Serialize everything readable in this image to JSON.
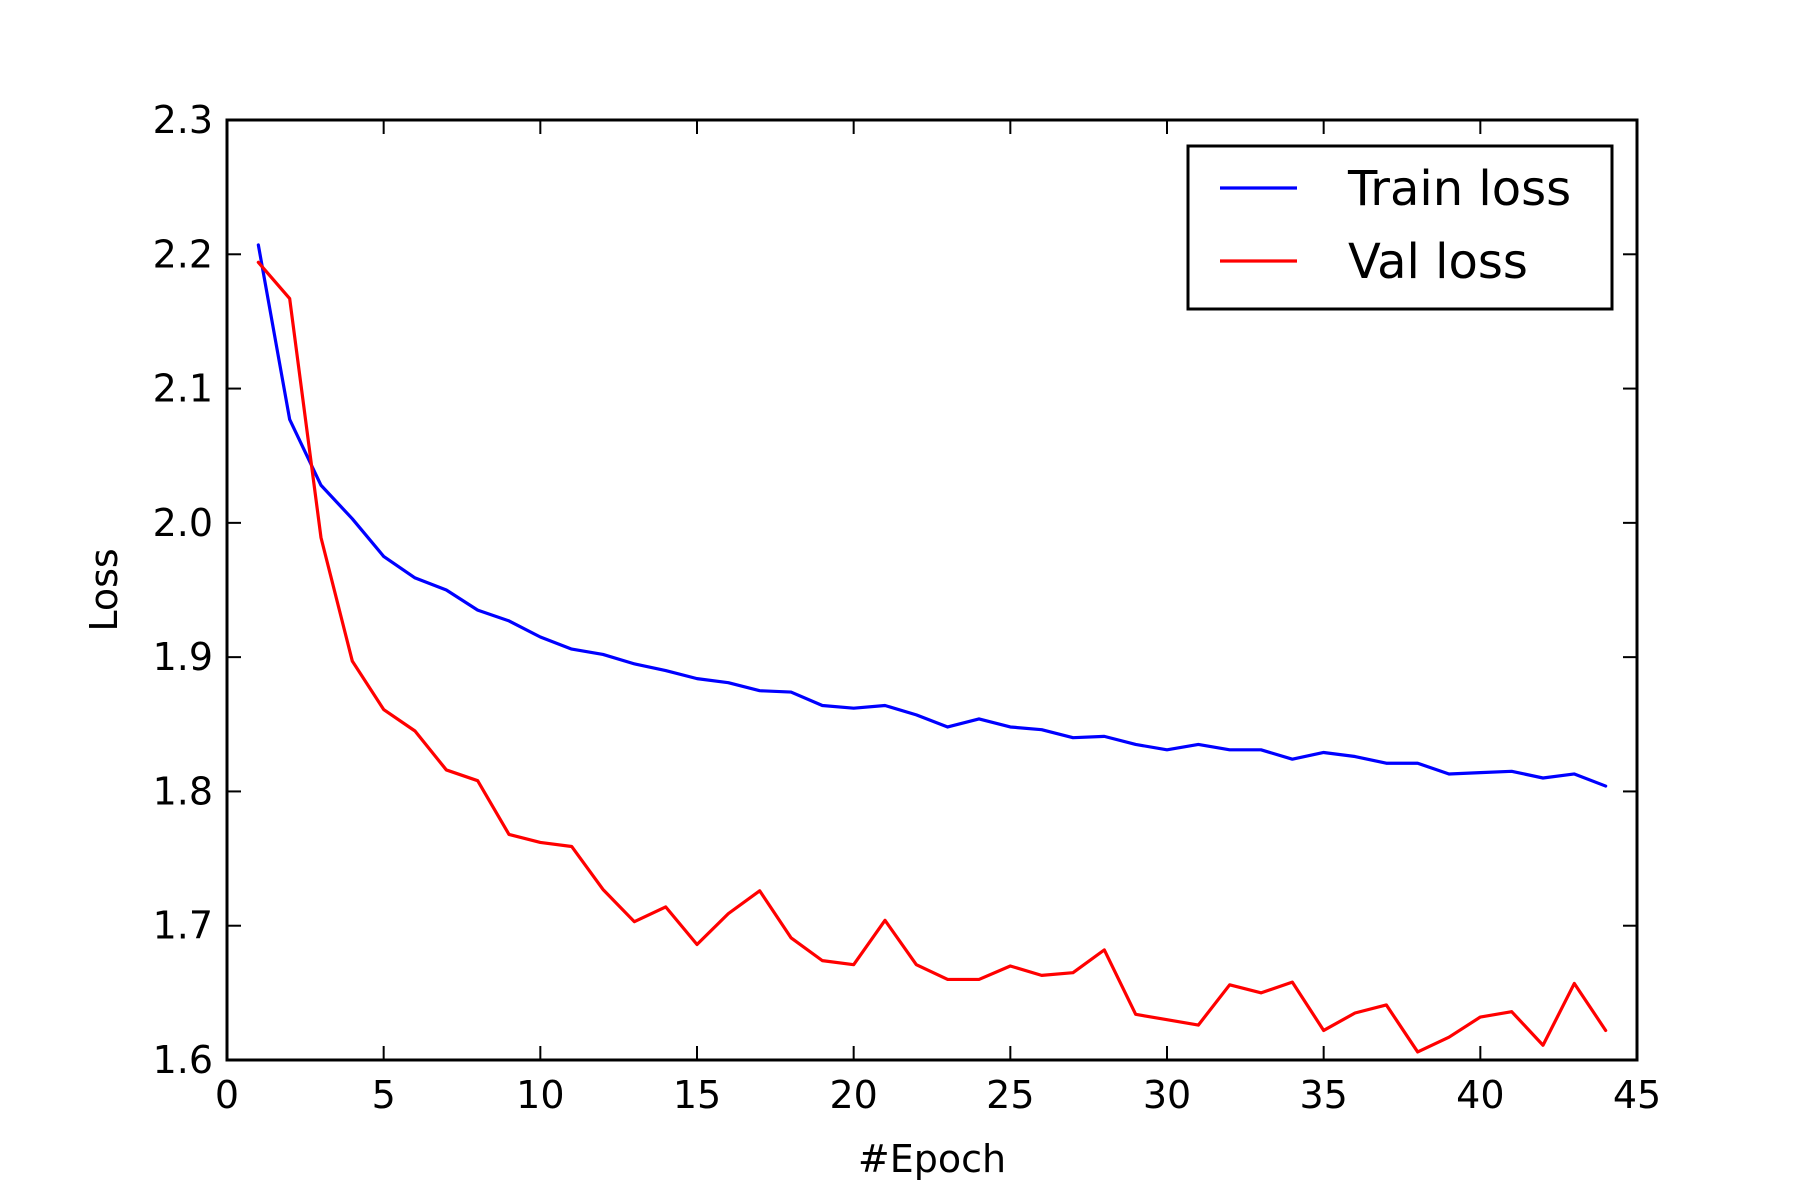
{
  "chart_data": {
    "type": "line",
    "xlabel": "#Epoch",
    "ylabel": "Loss",
    "xlim": [
      0,
      45
    ],
    "ylim": [
      1.6,
      2.3
    ],
    "xticks": [
      0,
      5,
      10,
      15,
      20,
      25,
      30,
      35,
      40,
      45
    ],
    "yticks": [
      1.6,
      1.7,
      1.8,
      1.9,
      2.0,
      2.1,
      2.2,
      2.3
    ],
    "xtick_labels": [
      "0",
      "5",
      "10",
      "15",
      "20",
      "25",
      "30",
      "35",
      "40",
      "45"
    ],
    "ytick_labels": [
      "1.6",
      "1.7",
      "1.8",
      "1.9",
      "2.0",
      "2.1",
      "2.2",
      "2.3"
    ],
    "grid": false,
    "legend_position": "top-right",
    "x": [
      1,
      2,
      3,
      4,
      5,
      6,
      7,
      8,
      9,
      10,
      11,
      12,
      13,
      14,
      15,
      16,
      17,
      18,
      19,
      20,
      21,
      22,
      23,
      24,
      25,
      26,
      27,
      28,
      29,
      30,
      31,
      32,
      33,
      34,
      35,
      36,
      37,
      38,
      39,
      40,
      41,
      42,
      43,
      44
    ],
    "series": [
      {
        "name": "Train loss",
        "color": "#0000ff",
        "values": [
          2.207,
          2.077,
          2.028,
          2.003,
          1.975,
          1.959,
          1.95,
          1.935,
          1.927,
          1.915,
          1.906,
          1.902,
          1.895,
          1.89,
          1.884,
          1.881,
          1.875,
          1.874,
          1.864,
          1.862,
          1.864,
          1.857,
          1.848,
          1.854,
          1.848,
          1.846,
          1.84,
          1.841,
          1.835,
          1.831,
          1.835,
          1.831,
          1.831,
          1.824,
          1.829,
          1.826,
          1.821,
          1.821,
          1.813,
          1.814,
          1.815,
          1.81,
          1.813,
          1.804
        ]
      },
      {
        "name": "Val loss",
        "color": "#ff0000",
        "values": [
          2.194,
          2.167,
          1.989,
          1.897,
          1.861,
          1.845,
          1.816,
          1.808,
          1.768,
          1.762,
          1.759,
          1.727,
          1.703,
          1.714,
          1.686,
          1.709,
          1.726,
          1.691,
          1.674,
          1.671,
          1.704,
          1.671,
          1.66,
          1.66,
          1.67,
          1.663,
          1.665,
          1.682,
          1.634,
          1.63,
          1.626,
          1.656,
          1.65,
          1.658,
          1.622,
          1.635,
          1.641,
          1.606,
          1.617,
          1.632,
          1.636,
          1.611,
          1.657,
          1.622
        ]
      }
    ]
  }
}
